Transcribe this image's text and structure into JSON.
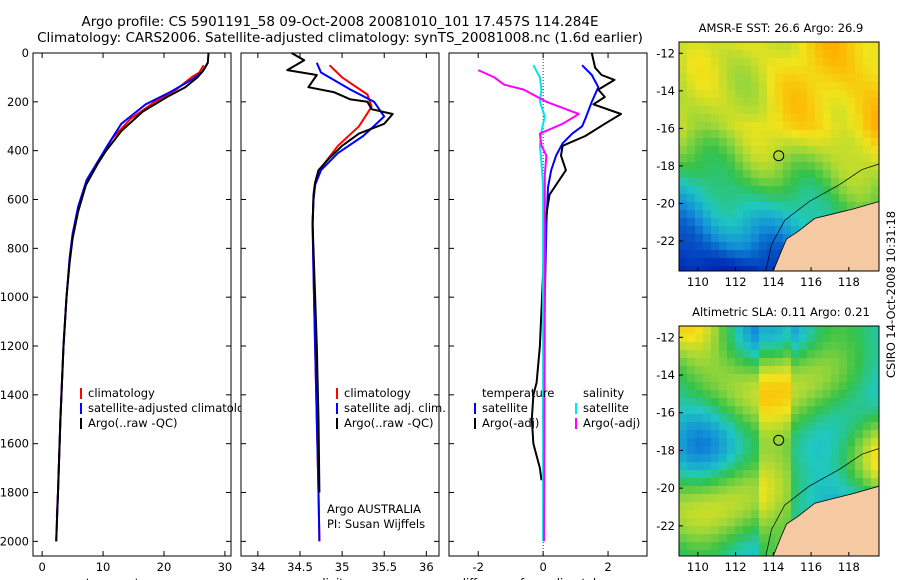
{
  "header": {
    "line1": "Argo profile: CS 5901191_58 09-Oct-2008 20081010_101 17.457S 114.284E",
    "line2": "Climatology: CARS2006. Satellite-adjusted climatology: synTS_20081008.nc (1.6d earlier)"
  },
  "maps": {
    "sst_title": "AMSR-E SST: 26.6 Argo: 26.9",
    "sla_title": "Altimetric SLA: 0.11 Argo: 0.21",
    "lat_ticks": [
      "-12",
      "-14",
      "-16",
      "-18",
      "-20",
      "-22"
    ],
    "lon_ticks": [
      "110",
      "112",
      "114",
      "116",
      "118"
    ],
    "float_lat": -17.457,
    "float_lon": 114.284,
    "colors": {
      "land": "#f5c9a1",
      "ocean_warm": "#3ec84a",
      "ocean_cool": "#18a0c8"
    }
  },
  "stamp": "CSIRO 14-Oct-2008 10:31:18",
  "colors": {
    "climatology": "#ff0000",
    "satellite": "#0000ff",
    "argo": "#000000",
    "salinity_sat": "#00e5ee",
    "salinity_argo": "#ff00ff",
    "zero_line": "#000000"
  },
  "chart_data": [
    {
      "type": "line",
      "xlabel": "temperature",
      "ylabel": "",
      "xlim": [
        -1.5,
        31
      ],
      "ylim": [
        2060,
        0
      ],
      "xticks": [
        0,
        10,
        20,
        30
      ],
      "yticks": [
        0,
        200,
        400,
        600,
        800,
        1000,
        1200,
        1400,
        1600,
        1800,
        2000
      ],
      "legend": [
        "climatology",
        "satellite-adjusted climatology",
        "Argo(..raw -QC)"
      ],
      "series": [
        {
          "name": "climatology",
          "color": "#ff0000",
          "x": [
            26.5,
            25.8,
            24.5,
            22.0,
            18.5,
            14.5,
            11.5,
            10.3,
            9.0,
            7.0,
            5.8,
            5.0,
            4.5,
            4.0,
            3.5,
            3.0,
            2.6,
            2.4
          ],
          "y": [
            50,
            80,
            100,
            150,
            200,
            270,
            350,
            400,
            450,
            550,
            650,
            750,
            850,
            1000,
            1200,
            1500,
            1800,
            1900
          ]
        },
        {
          "name": "satellite-adjusted climatology",
          "color": "#0000ff",
          "x": [
            27.2,
            26.2,
            24.5,
            21.0,
            17.0,
            13.0,
            10.7,
            9.5,
            7.3,
            5.9,
            5.0,
            4.5,
            4.0,
            3.5,
            3.0,
            2.6,
            2.3
          ],
          "y": [
            40,
            80,
            110,
            160,
            210,
            290,
            380,
            430,
            520,
            630,
            740,
            840,
            1000,
            1200,
            1500,
            1800,
            2000
          ]
        },
        {
          "name": "Argo(..raw -QC)",
          "color": "#000000",
          "x": [
            27.3,
            27.2,
            26.5,
            25.5,
            23.5,
            20.5,
            16.5,
            13.0,
            10.5,
            9.2,
            7.2,
            5.9,
            5.0,
            4.5,
            4.0,
            3.5,
            3.0,
            2.6,
            2.3
          ],
          "y": [
            0,
            40,
            70,
            100,
            140,
            180,
            240,
            320,
            400,
            450,
            540,
            650,
            760,
            860,
            1000,
            1200,
            1500,
            1800,
            2000
          ]
        }
      ]
    },
    {
      "type": "line",
      "xlabel": "salinity",
      "ylabel": "",
      "xlim": [
        33.8,
        36.15
      ],
      "ylim": [
        2060,
        0
      ],
      "xticks": [
        34,
        34.5,
        35,
        35.5,
        36
      ],
      "yticks": [
        0,
        200,
        400,
        600,
        800,
        1000,
        1200,
        1400,
        1600,
        1800,
        2000
      ],
      "legend": [
        "climatology",
        "satellite adj. clim.",
        "Argo(..raw -QC)"
      ],
      "annotation": [
        "Argo AUSTRALIA",
        "PI: Susan Wijffels"
      ],
      "series": [
        {
          "name": "climatology",
          "color": "#ff0000",
          "x": [
            34.85,
            35.0,
            35.3,
            35.35,
            35.2,
            34.95,
            34.75,
            34.68,
            34.66,
            34.65,
            34.66,
            34.68,
            34.7,
            34.72,
            34.73
          ],
          "y": [
            50,
            100,
            170,
            220,
            300,
            380,
            470,
            540,
            600,
            700,
            900,
            1200,
            1500,
            1800,
            2000
          ]
        },
        {
          "name": "satellite adj. clim.",
          "color": "#0000ff",
          "x": [
            34.7,
            34.75,
            35.1,
            35.38,
            35.5,
            35.25,
            34.95,
            34.75,
            34.68,
            34.66,
            34.65,
            34.66,
            34.68,
            34.7,
            34.72,
            34.73
          ],
          "y": [
            40,
            80,
            150,
            200,
            260,
            340,
            410,
            480,
            540,
            600,
            700,
            900,
            1200,
            1500,
            1800,
            2000
          ]
        },
        {
          "name": "Argo(..raw -QC)",
          "color": "#000000",
          "x": [
            34.4,
            34.55,
            34.35,
            34.7,
            34.6,
            34.9,
            35.1,
            35.3,
            35.35,
            35.6,
            35.5,
            35.2,
            35.0,
            34.85,
            34.72,
            34.68,
            34.66,
            34.65,
            34.67,
            34.7,
            34.72,
            34.73
          ],
          "y": [
            0,
            30,
            70,
            90,
            140,
            160,
            190,
            200,
            230,
            250,
            290,
            330,
            380,
            430,
            480,
            530,
            580,
            700,
            900,
            1200,
            1500,
            1800
          ]
        }
      ]
    },
    {
      "type": "line",
      "xlabel": "difference from climatology",
      "ylabel": "",
      "xlim": [
        -2.9,
        3.2
      ],
      "ylim": [
        2060,
        0
      ],
      "xticks": [
        -2,
        0,
        2
      ],
      "yticks": [
        0,
        200,
        400,
        600,
        800,
        1000,
        1200,
        1400,
        1600,
        1800,
        2000
      ],
      "legend_left_title": "temperature",
      "legend_right_title": "salinity",
      "legend": [
        "satellite",
        "Argo(-adj)",
        "satellite",
        "Argo(-adj)"
      ],
      "series": [
        {
          "name": "satellite",
          "group": "temperature",
          "color": "#0000ff",
          "x": [
            1.2,
            1.5,
            1.7,
            1.5,
            1.3,
            1.2,
            0.9,
            0.6,
            0.4,
            0.25,
            0.15,
            0.1,
            0.05,
            0.0
          ],
          "y": [
            50,
            90,
            140,
            200,
            270,
            300,
            330,
            370,
            420,
            480,
            550,
            700,
            1000,
            1500
          ]
        },
        {
          "name": "Argo(-adj)",
          "group": "temperature",
          "color": "#000000",
          "x": [
            1.5,
            1.6,
            1.8,
            2.2,
            1.7,
            1.9,
            1.55,
            2.4,
            1.9,
            1.3,
            0.6,
            0.55,
            0.7,
            0.45,
            0.2,
            0.05,
            0.0,
            -0.1,
            -0.2,
            -0.3,
            -0.35,
            -0.3,
            -0.1,
            -0.05
          ],
          "y": [
            0,
            60,
            90,
            110,
            150,
            180,
            210,
            250,
            290,
            340,
            380,
            420,
            480,
            530,
            580,
            700,
            900,
            1200,
            1350,
            1400,
            1500,
            1600,
            1700,
            1750
          ]
        },
        {
          "name": "satellite",
          "group": "salinity",
          "color": "#00e5ee",
          "x": [
            -0.3,
            -0.1,
            -0.05,
            -0.1,
            0.05,
            -0.05,
            -0.1,
            -0.05,
            0.0,
            0.0,
            0.0,
            0.0,
            0.0
          ],
          "y": [
            50,
            100,
            150,
            200,
            260,
            320,
            380,
            450,
            550,
            700,
            1000,
            1500,
            2000
          ]
        },
        {
          "name": "Argo(-adj)",
          "group": "salinity",
          "color": "#ff00ff",
          "x": [
            -2.0,
            -1.5,
            -1.2,
            -0.6,
            0.1,
            0.9,
            1.1,
            0.6,
            -0.1,
            -0.05,
            0.1,
            0.05,
            0.05,
            0.05,
            0.03
          ],
          "y": [
            70,
            100,
            130,
            150,
            200,
            240,
            250,
            290,
            330,
            380,
            420,
            500,
            700,
            1000,
            2000
          ]
        }
      ]
    }
  ]
}
